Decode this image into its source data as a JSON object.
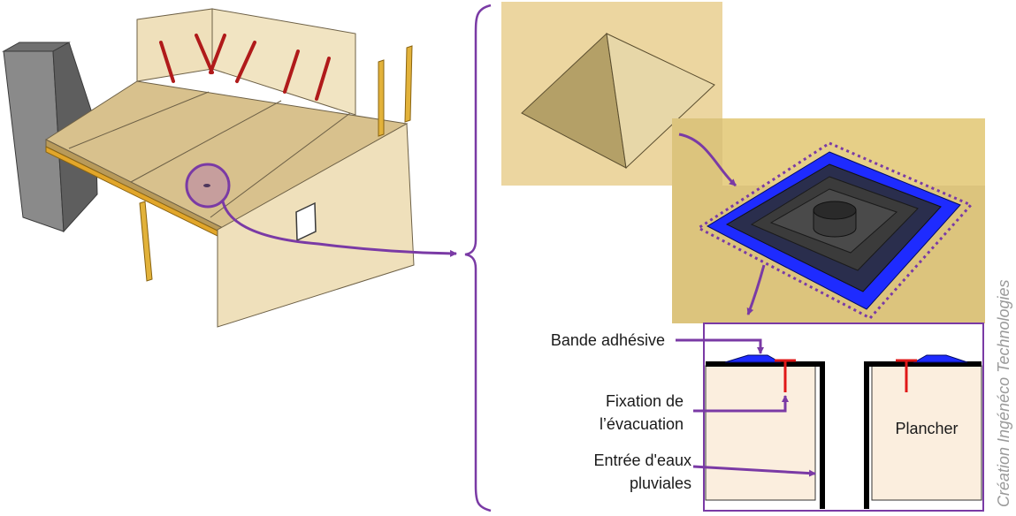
{
  "labels": {
    "bande": "Bande adhésive",
    "fixation_1": "Fixation de",
    "fixation_2": "l’évacuation",
    "entree_1": "Entrée d'eaux",
    "entree_2": "pluviales",
    "plancher": "Plancher"
  },
  "credit": "Création Ingénéco Technologies",
  "colors": {
    "accent_purple": "#7a3aa5",
    "floor_wood": "#d8c18d",
    "panel_bg": "#ecd6a0",
    "membrane_blue": "#1e2bff",
    "fixation_red": "#e01818",
    "floor_section": "#fbeede"
  }
}
